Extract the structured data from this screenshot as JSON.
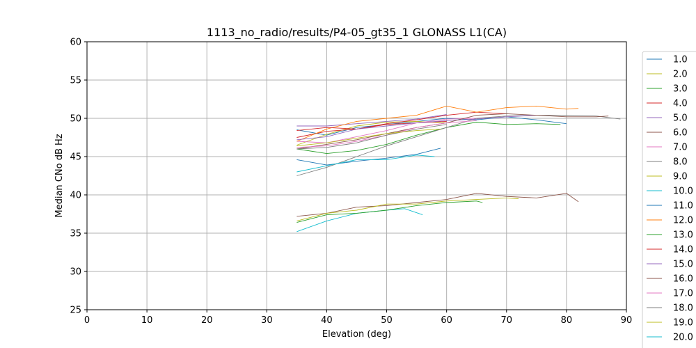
{
  "chart_data": {
    "type": "line",
    "title": "1113_no_radio/results/P4-05_gt35_1 GLONASS L1(CA)",
    "xlabel": "Elevation (deg)",
    "ylabel": "Median CNo dB Hz",
    "xlim": [
      0,
      90
    ],
    "ylim": [
      25,
      60
    ],
    "xticks": [
      "0",
      "10",
      "20",
      "30",
      "40",
      "50",
      "60",
      "70",
      "80",
      "90"
    ],
    "yticks": [
      "25",
      "30",
      "35",
      "40",
      "45",
      "50",
      "55",
      "60"
    ],
    "grid": true,
    "legend_position": "right-outside",
    "series": [
      {
        "name": "1.0",
        "color": "#1f77b4",
        "points": [
          [
            35,
            48.5
          ],
          [
            40,
            47.8
          ],
          [
            45,
            48.8
          ],
          [
            50,
            49.2
          ],
          [
            55,
            49.6
          ],
          [
            60,
            50.0
          ],
          [
            65,
            49.8
          ],
          [
            70,
            50.2
          ],
          [
            75,
            49.8
          ],
          [
            80,
            49.3
          ]
        ]
      },
      {
        "name": "2.0",
        "color": "#bcbd22",
        "points": [
          [
            35,
            46.5
          ],
          [
            40,
            47.9
          ],
          [
            45,
            49.0
          ],
          [
            50,
            49.5
          ],
          [
            55,
            49.6
          ],
          [
            60,
            49.4
          ]
        ]
      },
      {
        "name": "3.0",
        "color": "#2ca02c",
        "points": [
          [
            35,
            46.0
          ],
          [
            40,
            45.4
          ],
          [
            45,
            45.8
          ],
          [
            50,
            46.6
          ],
          [
            55,
            47.8
          ],
          [
            60,
            48.8
          ],
          [
            65,
            49.5
          ],
          [
            70,
            49.2
          ],
          [
            75,
            49.3
          ],
          [
            79,
            49.2
          ]
        ]
      },
      {
        "name": "4.0",
        "color": "#d62728",
        "points": [
          [
            35,
            47.5
          ],
          [
            40,
            48.3
          ],
          [
            45,
            48.6
          ],
          [
            50,
            49.3
          ],
          [
            55,
            49.8
          ],
          [
            60,
            50.4
          ],
          [
            65,
            50.8
          ],
          [
            70,
            50.6
          ]
        ]
      },
      {
        "name": "5.0",
        "color": "#9467bd",
        "points": [
          [
            35,
            49.0
          ],
          [
            40,
            49.0
          ],
          [
            45,
            49.3
          ],
          [
            50,
            49.6
          ],
          [
            55,
            49.9
          ],
          [
            60,
            50.5
          ]
        ]
      },
      {
        "name": "6.0",
        "color": "#8c564b",
        "points": [
          [
            35,
            37.2
          ],
          [
            40,
            37.6
          ],
          [
            45,
            38.4
          ],
          [
            50,
            38.6
          ],
          [
            55,
            39.0
          ],
          [
            60,
            39.4
          ],
          [
            65,
            40.2
          ],
          [
            70,
            39.8
          ],
          [
            75,
            39.6
          ],
          [
            80,
            40.2
          ],
          [
            82,
            39.1
          ]
        ]
      },
      {
        "name": "7.0",
        "color": "#e377c2",
        "points": [
          [
            35,
            47.0
          ],
          [
            40,
            46.8
          ],
          [
            45,
            47.6
          ],
          [
            50,
            48.4
          ],
          [
            55,
            49.4
          ],
          [
            60,
            49.9
          ],
          [
            65,
            50.0
          ]
        ]
      },
      {
        "name": "8.0",
        "color": "#7f7f7f",
        "points": [
          [
            35,
            42.5
          ],
          [
            40,
            43.6
          ],
          [
            45,
            45.0
          ],
          [
            50,
            46.4
          ],
          [
            55,
            47.6
          ],
          [
            60,
            48.8
          ],
          [
            65,
            50.0
          ],
          [
            70,
            50.3
          ],
          [
            75,
            50.4
          ],
          [
            80,
            50.4
          ],
          [
            85,
            50.3
          ],
          [
            89,
            49.9
          ]
        ]
      },
      {
        "name": "9.0",
        "color": "#bcbd22",
        "points": [
          [
            35,
            36.6
          ],
          [
            40,
            37.6
          ],
          [
            45,
            38.0
          ],
          [
            50,
            38.8
          ],
          [
            55,
            38.8
          ],
          [
            60,
            39.2
          ],
          [
            65,
            39.4
          ],
          [
            70,
            39.6
          ],
          [
            72,
            39.5
          ]
        ]
      },
      {
        "name": "10.0",
        "color": "#17becf",
        "points": [
          [
            35,
            35.2
          ],
          [
            40,
            36.6
          ],
          [
            45,
            37.6
          ],
          [
            50,
            38.0
          ],
          [
            53,
            38.2
          ],
          [
            56,
            37.4
          ]
        ]
      },
      {
        "name": "11.0",
        "color": "#1f77b4",
        "points": [
          [
            35,
            44.6
          ],
          [
            40,
            43.9
          ],
          [
            45,
            44.4
          ],
          [
            50,
            44.8
          ],
          [
            55,
            45.3
          ],
          [
            59,
            46.1
          ]
        ]
      },
      {
        "name": "12.0",
        "color": "#ff7f0e",
        "points": [
          [
            35,
            47.0
          ],
          [
            40,
            48.6
          ],
          [
            45,
            49.6
          ],
          [
            50,
            50.0
          ],
          [
            55,
            50.4
          ],
          [
            60,
            51.6
          ],
          [
            65,
            50.8
          ],
          [
            70,
            51.4
          ],
          [
            75,
            51.6
          ],
          [
            80,
            51.2
          ],
          [
            82,
            51.3
          ]
        ]
      },
      {
        "name": "13.0",
        "color": "#2ca02c",
        "points": [
          [
            35,
            36.4
          ],
          [
            40,
            37.4
          ],
          [
            45,
            37.6
          ],
          [
            50,
            38.0
          ],
          [
            55,
            38.6
          ],
          [
            60,
            39.0
          ],
          [
            65,
            39.2
          ],
          [
            66,
            39.0
          ]
        ]
      },
      {
        "name": "14.0",
        "color": "#d62728",
        "points": [
          [
            35,
            48.4
          ],
          [
            40,
            48.8
          ],
          [
            45,
            48.6
          ],
          [
            50,
            49.2
          ],
          [
            55,
            49.4
          ],
          [
            60,
            49.6
          ]
        ]
      },
      {
        "name": "15.0",
        "color": "#9467bd",
        "points": [
          [
            35,
            47.2
          ],
          [
            40,
            47.6
          ],
          [
            45,
            48.6
          ],
          [
            50,
            49.0
          ],
          [
            55,
            49.4
          ],
          [
            60,
            49.7
          ],
          [
            65,
            49.9
          ],
          [
            70,
            50.2
          ],
          [
            75,
            50.4
          ]
        ]
      },
      {
        "name": "16.0",
        "color": "#8c564b",
        "points": [
          [
            35,
            46.0
          ],
          [
            40,
            46.6
          ],
          [
            45,
            47.2
          ],
          [
            50,
            48.0
          ],
          [
            55,
            48.8
          ],
          [
            60,
            49.4
          ],
          [
            65,
            50.4
          ],
          [
            70,
            50.6
          ],
          [
            75,
            50.4
          ],
          [
            80,
            50.2
          ],
          [
            85,
            50.2
          ],
          [
            87,
            50.3
          ]
        ]
      },
      {
        "name": "17.0",
        "color": "#e377c2",
        "points": [
          [
            35,
            46.2
          ],
          [
            40,
            46.4
          ],
          [
            45,
            47.0
          ],
          [
            50,
            47.8
          ],
          [
            55,
            48.8
          ],
          [
            60,
            49.4
          ],
          [
            65,
            49.7
          ]
        ]
      },
      {
        "name": "18.0",
        "color": "#7f7f7f",
        "points": [
          [
            35,
            46.0
          ],
          [
            40,
            46.2
          ],
          [
            45,
            46.8
          ],
          [
            50,
            47.8
          ],
          [
            55,
            48.6
          ],
          [
            60,
            49.2
          ]
        ]
      },
      {
        "name": "19.0",
        "color": "#bcbd22",
        "points": [
          [
            35,
            46.4
          ],
          [
            40,
            46.8
          ],
          [
            45,
            47.4
          ],
          [
            50,
            48.0
          ],
          [
            55,
            48.4
          ],
          [
            59,
            48.6
          ]
        ]
      },
      {
        "name": "20.0",
        "color": "#17becf",
        "points": [
          [
            35,
            43.0
          ],
          [
            40,
            43.8
          ],
          [
            45,
            44.6
          ],
          [
            50,
            44.6
          ],
          [
            55,
            45.2
          ],
          [
            58,
            45.0
          ]
        ]
      }
    ]
  }
}
